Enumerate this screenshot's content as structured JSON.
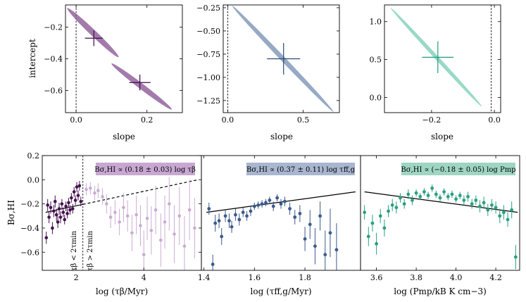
{
  "chart_data": [
    {
      "id": "top1",
      "type": "scatter",
      "xlabel": "slope",
      "ylabel": "intercept",
      "xlim": [
        -0.03,
        0.3
      ],
      "ylim": [
        -0.74,
        -0.06
      ],
      "xticks": [
        0.0,
        0.2
      ],
      "xticklabels": [
        "0.0",
        "0.2"
      ],
      "yticks": [
        -0.2,
        -0.4,
        -0.6
      ],
      "yticklabels": [
        "−0.2",
        "−0.4",
        "−0.6"
      ],
      "vline": 0.0,
      "color": "#8b5a96",
      "ellipses": [
        {
          "from": [
            -0.025,
            -0.08
          ],
          "to": [
            0.12,
            -0.39
          ],
          "halfwidth": 0.028
        },
        {
          "from": [
            0.1,
            -0.43
          ],
          "to": [
            0.27,
            -0.72
          ],
          "halfwidth": 0.026
        }
      ],
      "points": [
        {
          "x": 0.05,
          "y": -0.27,
          "xerr": 0.025,
          "yerr": 0.05
        },
        {
          "x": 0.18,
          "y": -0.55,
          "xerr": 0.03,
          "yerr": 0.05
        }
      ]
    },
    {
      "id": "top2",
      "type": "scatter",
      "xlabel": "slope",
      "ylabel": "",
      "xlim": [
        -0.03,
        0.74
      ],
      "ylim": [
        -1.38,
        -0.22
      ],
      "xticks": [
        0.0,
        0.5
      ],
      "xticklabels": [
        "0.0",
        "0.5"
      ],
      "yticks": [
        -0.25,
        -0.5,
        -0.75,
        -1.0,
        -1.25
      ],
      "yticklabels": [
        "−0.25",
        "−0.50",
        "−0.75",
        "−1.00",
        "−1.25"
      ],
      "vline": 0.0,
      "color": "#7d95b7",
      "ellipses": [
        {
          "from": [
            0.03,
            -0.23
          ],
          "to": [
            0.7,
            -1.37
          ],
          "halfwidth": 0.022
        }
      ],
      "points": [
        {
          "x": 0.37,
          "y": -0.8,
          "xerr": 0.11,
          "yerr": 0.17
        }
      ]
    },
    {
      "id": "top3",
      "type": "scatter",
      "xlabel": "slope",
      "ylabel": "",
      "xlim": [
        -0.35,
        0.02
      ],
      "ylim": [
        -0.2,
        1.22
      ],
      "xticks": [
        -0.2,
        0.0
      ],
      "xticklabels": [
        "−0.2",
        "0.0"
      ],
      "yticks": [
        0.0,
        0.5,
        1.0
      ],
      "yticklabels": [
        "0.0",
        "0.5",
        "1.0"
      ],
      "vline": -0.01,
      "color": "#7fcfb8",
      "ellipses": [
        {
          "from": [
            -0.33,
            1.18
          ],
          "to": [
            -0.04,
            -0.12
          ],
          "halfwidth": 0.018
        }
      ],
      "points": [
        {
          "x": -0.18,
          "y": 0.53,
          "xerr": 0.05,
          "yerr": 0.21
        }
      ]
    },
    {
      "id": "bot1",
      "type": "scatter",
      "xlabel": "log (τβ/Myr)",
      "ylabel": "Bσ,HI",
      "xlim": [
        1.0,
        5.7
      ],
      "ylim": [
        -0.75,
        0.2
      ],
      "xticks": [
        2,
        4
      ],
      "xticklabels": [
        "2",
        "4"
      ],
      "yticks": [
        0.2,
        0.0,
        -0.2,
        -0.4,
        -0.6
      ],
      "yticklabels": [
        "0.2",
        "0.0",
        "−0.2",
        "−0.4",
        "−0.6"
      ],
      "vline": 2.2,
      "annotation": "Bσ,HI ∝ (0.18 ± 0.03) log τβ",
      "label_below": "τβ < 2τmin",
      "label_above": "τβ > 2τmin",
      "fit": {
        "x0": 1.1,
        "y0": -0.27,
        "x1": 5.6,
        "y1": 0.0
      },
      "dark_color": "#45104f",
      "light_color": "#c8a8d2",
      "points_dark": [
        {
          "x": 1.12,
          "y": -0.48,
          "e": 0.05
        },
        {
          "x": 1.16,
          "y": -0.21,
          "e": 0.05
        },
        {
          "x": 1.2,
          "y": -0.31,
          "e": 0.05
        },
        {
          "x": 1.25,
          "y": -0.23,
          "e": 0.05
        },
        {
          "x": 1.3,
          "y": -0.4,
          "e": 0.05
        },
        {
          "x": 1.34,
          "y": -0.26,
          "e": 0.05
        },
        {
          "x": 1.38,
          "y": -0.18,
          "e": 0.05
        },
        {
          "x": 1.42,
          "y": -0.29,
          "e": 0.05
        },
        {
          "x": 1.46,
          "y": -0.35,
          "e": 0.05
        },
        {
          "x": 1.5,
          "y": -0.24,
          "e": 0.05
        },
        {
          "x": 1.54,
          "y": -0.31,
          "e": 0.05
        },
        {
          "x": 1.58,
          "y": -0.2,
          "e": 0.04
        },
        {
          "x": 1.62,
          "y": -0.27,
          "e": 0.04
        },
        {
          "x": 1.66,
          "y": -0.33,
          "e": 0.04
        },
        {
          "x": 1.7,
          "y": -0.22,
          "e": 0.04
        },
        {
          "x": 1.74,
          "y": -0.28,
          "e": 0.04
        },
        {
          "x": 1.78,
          "y": -0.19,
          "e": 0.04
        },
        {
          "x": 1.82,
          "y": -0.25,
          "e": 0.04
        },
        {
          "x": 1.86,
          "y": -0.15,
          "e": 0.04
        },
        {
          "x": 1.9,
          "y": -0.24,
          "e": 0.04
        },
        {
          "x": 1.94,
          "y": -0.1,
          "e": 0.04
        },
        {
          "x": 1.98,
          "y": -0.17,
          "e": 0.04
        },
        {
          "x": 2.02,
          "y": -0.06,
          "e": 0.04
        },
        {
          "x": 2.06,
          "y": -0.13,
          "e": 0.04
        },
        {
          "x": 2.1,
          "y": -0.05,
          "e": 0.04
        },
        {
          "x": 2.14,
          "y": -0.18,
          "e": 0.04
        }
      ],
      "points_light": [
        {
          "x": 2.3,
          "y": -0.08,
          "e": 0.05
        },
        {
          "x": 2.42,
          "y": -0.07,
          "e": 0.05
        },
        {
          "x": 2.55,
          "y": -0.11,
          "e": 0.06
        },
        {
          "x": 2.65,
          "y": -0.09,
          "e": 0.06
        },
        {
          "x": 2.78,
          "y": -0.14,
          "e": 0.07
        },
        {
          "x": 2.9,
          "y": -0.2,
          "e": 0.08
        },
        {
          "x": 3.02,
          "y": -0.31,
          "e": 0.09
        },
        {
          "x": 3.15,
          "y": -0.27,
          "e": 0.1
        },
        {
          "x": 3.28,
          "y": -0.35,
          "e": 0.11
        },
        {
          "x": 3.4,
          "y": -0.23,
          "e": 0.12
        },
        {
          "x": 3.52,
          "y": -0.3,
          "e": 0.13
        },
        {
          "x": 3.65,
          "y": -0.44,
          "e": 0.15
        },
        {
          "x": 3.78,
          "y": -0.29,
          "e": 0.16
        },
        {
          "x": 3.9,
          "y": -0.38,
          "e": 0.17
        },
        {
          "x": 4.0,
          "y": -0.62,
          "e": 0.2
        },
        {
          "x": 4.1,
          "y": -0.32,
          "e": 0.18
        },
        {
          "x": 4.22,
          "y": -0.42,
          "e": 0.2
        },
        {
          "x": 4.35,
          "y": -0.25,
          "e": 0.2
        },
        {
          "x": 4.5,
          "y": -0.5,
          "e": 0.22
        },
        {
          "x": 4.62,
          "y": -0.35,
          "e": 0.22
        },
        {
          "x": 4.75,
          "y": -0.2,
          "e": 0.22
        },
        {
          "x": 4.9,
          "y": -0.45,
          "e": 0.24
        },
        {
          "x": 5.05,
          "y": -0.3,
          "e": 0.24
        },
        {
          "x": 5.2,
          "y": -0.55,
          "e": 0.25
        },
        {
          "x": 5.35,
          "y": -0.25,
          "e": 0.25
        },
        {
          "x": 5.5,
          "y": -0.4,
          "e": 0.25
        }
      ]
    },
    {
      "id": "bot2",
      "type": "scatter",
      "xlabel": "log (τff,g/Myr)",
      "ylabel": "",
      "xlim": [
        1.39,
        2.02
      ],
      "ylim": [
        -0.75,
        0.2
      ],
      "xticks": [
        1.4,
        1.6,
        1.8
      ],
      "xticklabels": [
        "1.4",
        "1.6",
        "1.8"
      ],
      "yticks": [],
      "yticklabels": [],
      "annotation": "Bσ,HI ∝ (0.37 ± 0.11) log τff,g",
      "fit": {
        "x0": 1.41,
        "y0": -0.27,
        "x1": 2.0,
        "y1": -0.1
      },
      "color": "#3c5a8c",
      "points": [
        {
          "x": 1.42,
          "y": -0.24,
          "e": 0.05
        },
        {
          "x": 1.435,
          "y": -0.7,
          "e": 0.08
        },
        {
          "x": 1.445,
          "y": -0.36,
          "e": 0.07
        },
        {
          "x": 1.46,
          "y": -0.34,
          "e": 0.06
        },
        {
          "x": 1.47,
          "y": -0.47,
          "e": 0.07
        },
        {
          "x": 1.485,
          "y": -0.3,
          "e": 0.05
        },
        {
          "x": 1.5,
          "y": -0.34,
          "e": 0.06
        },
        {
          "x": 1.51,
          "y": -0.39,
          "e": 0.05
        },
        {
          "x": 1.525,
          "y": -0.29,
          "e": 0.05
        },
        {
          "x": 1.54,
          "y": -0.33,
          "e": 0.05
        },
        {
          "x": 1.555,
          "y": -0.27,
          "e": 0.04
        },
        {
          "x": 1.57,
          "y": -0.3,
          "e": 0.04
        },
        {
          "x": 1.585,
          "y": -0.26,
          "e": 0.04
        },
        {
          "x": 1.6,
          "y": -0.22,
          "e": 0.03
        },
        {
          "x": 1.615,
          "y": -0.21,
          "e": 0.03
        },
        {
          "x": 1.63,
          "y": -0.2,
          "e": 0.03
        },
        {
          "x": 1.645,
          "y": -0.19,
          "e": 0.03
        },
        {
          "x": 1.66,
          "y": -0.17,
          "e": 0.03
        },
        {
          "x": 1.675,
          "y": -0.22,
          "e": 0.04
        },
        {
          "x": 1.69,
          "y": -0.15,
          "e": 0.03
        },
        {
          "x": 1.705,
          "y": -0.2,
          "e": 0.04
        },
        {
          "x": 1.72,
          "y": -0.18,
          "e": 0.04
        },
        {
          "x": 1.74,
          "y": -0.24,
          "e": 0.05
        },
        {
          "x": 1.76,
          "y": -0.31,
          "e": 0.06
        },
        {
          "x": 1.78,
          "y": -0.28,
          "e": 0.07
        },
        {
          "x": 1.8,
          "y": -0.49,
          "e": 0.1
        },
        {
          "x": 1.82,
          "y": -0.37,
          "e": 0.12
        },
        {
          "x": 1.84,
          "y": -0.55,
          "e": 0.15
        },
        {
          "x": 1.86,
          "y": -0.3,
          "e": 0.12
        },
        {
          "x": 1.88,
          "y": -0.62,
          "e": 0.2
        },
        {
          "x": 1.9,
          "y": -0.44,
          "e": 0.2
        },
        {
          "x": 1.925,
          "y": -0.58,
          "e": 0.22
        }
      ]
    },
    {
      "id": "bot3",
      "type": "scatter",
      "xlabel": "log (Pmp/kB K cm−3)",
      "ylabel": "",
      "xlim": [
        3.52,
        4.32
      ],
      "ylim": [
        -0.75,
        0.2
      ],
      "xticks": [
        3.6,
        3.8,
        4.0,
        4.2
      ],
      "xticklabels": [
        "3.6",
        "3.8",
        "4.0",
        "4.2"
      ],
      "yticks": [],
      "yticklabels": [],
      "annotation": "Bσ,HI ∝ (−0.18 ± 0.05) log Pmp",
      "fit": {
        "x0": 3.54,
        "y0": -0.1,
        "x1": 4.31,
        "y1": -0.27
      },
      "color": "#29a080",
      "points": [
        {
          "x": 3.54,
          "y": -0.27,
          "e": 0.06
        },
        {
          "x": 3.56,
          "y": -0.47,
          "e": 0.08
        },
        {
          "x": 3.58,
          "y": -0.36,
          "e": 0.07
        },
        {
          "x": 3.6,
          "y": -0.53,
          "e": 0.09
        },
        {
          "x": 3.62,
          "y": -0.3,
          "e": 0.06
        },
        {
          "x": 3.64,
          "y": -0.4,
          "e": 0.07
        },
        {
          "x": 3.66,
          "y": -0.26,
          "e": 0.05
        },
        {
          "x": 3.68,
          "y": -0.21,
          "e": 0.05
        },
        {
          "x": 3.7,
          "y": -0.23,
          "e": 0.05
        },
        {
          "x": 3.72,
          "y": -0.15,
          "e": 0.04
        },
        {
          "x": 3.74,
          "y": -0.2,
          "e": 0.04
        },
        {
          "x": 3.76,
          "y": -0.12,
          "e": 0.04
        },
        {
          "x": 3.78,
          "y": -0.17,
          "e": 0.04
        },
        {
          "x": 3.8,
          "y": -0.11,
          "e": 0.03
        },
        {
          "x": 3.82,
          "y": -0.14,
          "e": 0.03
        },
        {
          "x": 3.84,
          "y": -0.1,
          "e": 0.03
        },
        {
          "x": 3.86,
          "y": -0.13,
          "e": 0.03
        },
        {
          "x": 3.88,
          "y": -0.07,
          "e": 0.03
        },
        {
          "x": 3.9,
          "y": -0.12,
          "e": 0.03
        },
        {
          "x": 3.92,
          "y": -0.15,
          "e": 0.03
        },
        {
          "x": 3.94,
          "y": -0.1,
          "e": 0.03
        },
        {
          "x": 3.96,
          "y": -0.14,
          "e": 0.03
        },
        {
          "x": 3.98,
          "y": -0.12,
          "e": 0.03
        },
        {
          "x": 4.0,
          "y": -0.16,
          "e": 0.03
        },
        {
          "x": 4.02,
          "y": -0.13,
          "e": 0.03
        },
        {
          "x": 4.04,
          "y": -0.17,
          "e": 0.04
        },
        {
          "x": 4.06,
          "y": -0.14,
          "e": 0.04
        },
        {
          "x": 4.08,
          "y": -0.2,
          "e": 0.04
        },
        {
          "x": 4.1,
          "y": -0.17,
          "e": 0.04
        },
        {
          "x": 4.12,
          "y": -0.22,
          "e": 0.05
        },
        {
          "x": 4.14,
          "y": -0.19,
          "e": 0.05
        },
        {
          "x": 4.16,
          "y": -0.25,
          "e": 0.05
        },
        {
          "x": 4.18,
          "y": -0.21,
          "e": 0.05
        },
        {
          "x": 4.2,
          "y": -0.23,
          "e": 0.05
        },
        {
          "x": 4.22,
          "y": -0.3,
          "e": 0.06
        },
        {
          "x": 4.24,
          "y": -0.27,
          "e": 0.06
        },
        {
          "x": 4.26,
          "y": -0.33,
          "e": 0.06
        },
        {
          "x": 4.28,
          "y": -0.25,
          "e": 0.07
        },
        {
          "x": 4.3,
          "y": -0.64,
          "e": 0.1
        }
      ]
    }
  ]
}
